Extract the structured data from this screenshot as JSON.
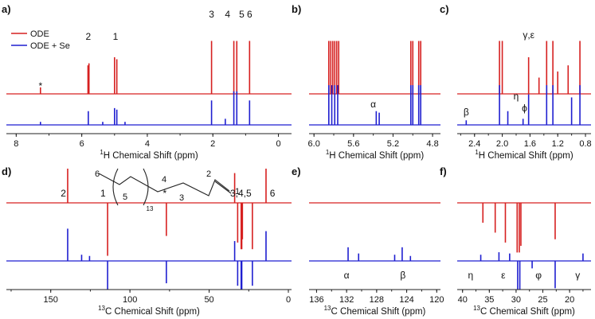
{
  "figure": {
    "red_color": "#d62020",
    "blue_color": "#1f1fd0",
    "axis_color": "#222222"
  },
  "chart_data": [
    {
      "id": "a",
      "panel_label": "a)",
      "type": "line",
      "title": "",
      "xlabel_sup": "1",
      "xlabel": "H Chemical Shift (ppm)",
      "xlim": [
        8.3,
        -0.4
      ],
      "ticks": [
        8,
        6,
        4,
        2,
        0
      ],
      "legend": {
        "position": "top-left",
        "entries": [
          "ODE",
          "ODE + Se"
        ]
      },
      "series": [
        {
          "name": "ODE",
          "color": "red",
          "baseline_row": "top",
          "peaks": [
            [
              7.26,
              0.16
            ],
            [
              5.81,
              0.7
            ],
            [
              5.78,
              0.75
            ],
            [
              5.0,
              0.9
            ],
            [
              4.93,
              0.85
            ],
            [
              2.04,
              1.3
            ],
            [
              1.36,
              1.3
            ],
            [
              1.27,
              1.3
            ],
            [
              0.88,
              1.3
            ]
          ]
        },
        {
          "name": "ODE + Se",
          "color": "blue",
          "baseline_row": "bottom",
          "peaks": [
            [
              7.26,
              0.1
            ],
            [
              5.8,
              0.45
            ],
            [
              5.36,
              0.1
            ],
            [
              5.0,
              0.55
            ],
            [
              4.93,
              0.5
            ],
            [
              4.68,
              0.1
            ],
            [
              2.04,
              0.8
            ],
            [
              1.62,
              0.2
            ],
            [
              1.36,
              1.1
            ],
            [
              1.27,
              1.1
            ],
            [
              0.88,
              0.8
            ]
          ]
        }
      ],
      "annotations": [
        {
          "text": "*",
          "x": 7.26
        },
        {
          "text": "2",
          "x": 5.8
        },
        {
          "text": "1",
          "x": 4.97
        },
        {
          "text": "3",
          "x": 2.04
        },
        {
          "text": "4",
          "x": 1.55
        },
        {
          "text": "5",
          "x": 1.12
        },
        {
          "text": "6",
          "x": 0.88
        }
      ]
    },
    {
      "id": "b",
      "panel_label": "b)",
      "type": "line",
      "xlabel_sup": "1",
      "xlabel": "H Chemical Shift (ppm)",
      "xlim": [
        6.05,
        4.72
      ],
      "ticks": [
        6.0,
        5.6,
        5.2,
        4.8
      ],
      "tick_labels": [
        "6.0",
        "5.6",
        "5.2",
        "4.8"
      ],
      "series": [
        {
          "name": "ODE",
          "color": "red",
          "baseline_row": "top",
          "peaks": [
            [
              5.85,
              1.3
            ],
            [
              5.83,
              1.3
            ],
            [
              5.81,
              1.3
            ],
            [
              5.79,
              1.3
            ],
            [
              5.77,
              1.3
            ],
            [
              5.75,
              1.3
            ],
            [
              5.02,
              1.3
            ],
            [
              5.0,
              1.3
            ],
            [
              4.94,
              1.3
            ],
            [
              4.92,
              1.3
            ]
          ]
        },
        {
          "name": "ODE + Se",
          "color": "blue",
          "baseline_row": "bottom",
          "peaks": [
            [
              5.85,
              1.3
            ],
            [
              5.82,
              1.3
            ],
            [
              5.79,
              1.3
            ],
            [
              5.76,
              1.3
            ],
            [
              5.37,
              0.45
            ],
            [
              5.34,
              0.4
            ],
            [
              5.02,
              1.3
            ],
            [
              5.0,
              1.3
            ],
            [
              4.94,
              1.3
            ],
            [
              4.92,
              1.3
            ]
          ]
        }
      ],
      "annotations": [
        {
          "text": "α",
          "x": 5.4
        }
      ]
    },
    {
      "id": "c",
      "panel_label": "c)",
      "type": "line",
      "xlabel_sup": "1",
      "xlabel": "H Chemical Shift (ppm)",
      "xlim": [
        2.65,
        0.72
      ],
      "ticks": [
        2.4,
        2.0,
        1.6,
        1.2,
        0.8
      ],
      "tick_labels": [
        "2.4",
        "2.0",
        "1.6",
        "1.2",
        "0.8"
      ],
      "series": [
        {
          "name": "ODE",
          "color": "red",
          "baseline_row": "top",
          "peaks": [
            [
              2.04,
              1.3
            ],
            [
              2.0,
              1.3
            ],
            [
              1.62,
              0.9
            ],
            [
              1.47,
              0.4
            ],
            [
              1.36,
              1.3
            ],
            [
              1.27,
              1.3
            ],
            [
              1.2,
              0.55
            ],
            [
              1.05,
              0.7
            ],
            [
              0.88,
              1.3
            ]
          ]
        },
        {
          "name": "ODE + Se",
          "color": "blue",
          "baseline_row": "bottom",
          "peaks": [
            [
              2.52,
              0.15
            ],
            [
              2.04,
              1.3
            ],
            [
              1.92,
              0.45
            ],
            [
              1.7,
              0.2
            ],
            [
              1.62,
              1.0
            ],
            [
              1.36,
              1.3
            ],
            [
              1.27,
              1.3
            ],
            [
              1.0,
              0.9
            ],
            [
              0.88,
              1.3
            ]
          ]
        }
      ],
      "annotations": [
        {
          "text": "β",
          "x": 2.52
        },
        {
          "text": "η",
          "x": 1.8
        },
        {
          "text": "ϕ",
          "x": 1.68
        },
        {
          "text": "γ,ε",
          "x": 1.62
        }
      ]
    },
    {
      "id": "d",
      "panel_label": "d)",
      "type": "line",
      "xlabel_sup": "13",
      "xlabel": "C Chemical Shift (ppm)",
      "xlim": [
        178,
        -2
      ],
      "ticks": [
        150,
        100,
        50,
        0
      ],
      "structure": {
        "labels": [
          "6",
          "5",
          "13",
          "4",
          "3",
          "2",
          "1"
        ]
      },
      "series": [
        {
          "name": "ODE",
          "color": "red",
          "baseline_row": "top",
          "peaks": [
            [
              139.3,
              1.35
            ],
            [
              114.1,
              -1.6
            ],
            [
              77.0,
              -1.0
            ],
            [
              33.9,
              0.9
            ],
            [
              32.0,
              -1.2
            ],
            [
              29.8,
              -1.4
            ],
            [
              29.4,
              -1.4
            ],
            [
              29.0,
              -1.1
            ],
            [
              22.7,
              -1.4
            ],
            [
              14.1,
              1.3
            ]
          ]
        },
        {
          "name": "ODE + Se",
          "color": "blue",
          "baseline_row": "bottom",
          "peaks": [
            [
              139.3,
              1.3
            ],
            [
              130.5,
              0.25
            ],
            [
              125.5,
              0.2
            ],
            [
              114.1,
              -1.3
            ],
            [
              77.0,
              -0.9
            ],
            [
              33.9,
              0.8
            ],
            [
              32.0,
              -1.0
            ],
            [
              29.8,
              -1.2
            ],
            [
              29.4,
              -1.2
            ],
            [
              22.7,
              -1.0
            ],
            [
              14.1,
              1.2
            ]
          ]
        }
      ],
      "annotations": [
        {
          "text": "2",
          "x": 142
        },
        {
          "text": "1",
          "x": 117
        },
        {
          "text": "*",
          "x": 78
        },
        {
          "text": "3,4,5",
          "x": 30
        },
        {
          "text": "6",
          "x": 10
        }
      ]
    },
    {
      "id": "e",
      "panel_label": "e)",
      "type": "line",
      "xlabel_sup": "13",
      "xlabel": "C Chemical Shift (ppm)",
      "xlim": [
        137,
        119.5
      ],
      "ticks": [
        136,
        132,
        128,
        124,
        120
      ],
      "series": [
        {
          "name": "ODE",
          "color": "red",
          "baseline_row": "top",
          "peaks": []
        },
        {
          "name": "ODE + Se",
          "color": "blue",
          "baseline_row": "bottom",
          "peaks": [
            [
              131.8,
              0.55
            ],
            [
              130.4,
              0.3
            ],
            [
              125.6,
              0.25
            ],
            [
              124.6,
              0.55
            ],
            [
              123.5,
              0.2
            ]
          ]
        }
      ],
      "annotations": [
        {
          "text": "α",
          "x": 132
        },
        {
          "text": "β",
          "x": 124.5
        }
      ]
    },
    {
      "id": "f",
      "panel_label": "f)",
      "type": "line",
      "xlabel_sup": "13",
      "xlabel": "C Chemical Shift (ppm)",
      "xlim": [
        41,
        16
      ],
      "ticks": [
        40,
        35,
        30,
        25,
        20
      ],
      "series": [
        {
          "name": "ODE",
          "color": "red",
          "baseline_row": "top",
          "peaks": [
            [
              36.2,
              -0.6
            ],
            [
              33.9,
              -0.9
            ],
            [
              32.0,
              -1.2
            ],
            [
              29.8,
              -1.5
            ],
            [
              29.4,
              -1.5
            ],
            [
              29.1,
              -1.3
            ],
            [
              22.7,
              -1.1
            ]
          ]
        },
        {
          "name": "ODE + Se",
          "color": "blue",
          "baseline_row": "bottom",
          "peaks": [
            [
              36.6,
              0.25
            ],
            [
              33.2,
              0.35
            ],
            [
              31.2,
              0.3
            ],
            [
              29.7,
              -1.5
            ],
            [
              29.3,
              -1.5
            ],
            [
              27.0,
              -0.3
            ],
            [
              22.7,
              -1.1
            ],
            [
              17.5,
              0.3
            ]
          ]
        }
      ],
      "annotations": [
        {
          "text": "η",
          "x": 38.5
        },
        {
          "text": "ε",
          "x": 32.4
        },
        {
          "text": "φ",
          "x": 25.8
        },
        {
          "text": "γ",
          "x": 18.5
        }
      ]
    }
  ]
}
